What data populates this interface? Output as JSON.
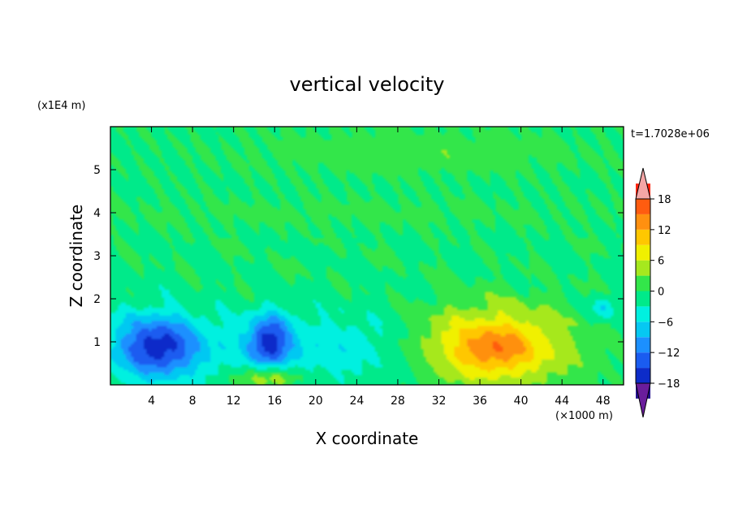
{
  "chart_data": {
    "type": "heatmap",
    "title": "vertical velocity",
    "xlabel": "X coordinate",
    "ylabel": "Z coordinate",
    "x_unit": "(×1000 m)",
    "y_unit": "(x1E4 m)",
    "time_label": "t=1.7028e+06",
    "xlim": [
      0,
      50
    ],
    "ylim": [
      0,
      6
    ],
    "x_ticks": [
      4,
      8,
      12,
      16,
      20,
      24,
      28,
      32,
      36,
      40,
      44,
      48
    ],
    "y_ticks": [
      1,
      2,
      3,
      4,
      5
    ],
    "colorbar": {
      "labels": [
        "18",
        "12",
        "6",
        "0",
        "−6",
        "−12",
        "−18"
      ],
      "label_values": [
        18,
        12,
        6,
        0,
        -6,
        -12,
        -18
      ],
      "range": [
        -21,
        21
      ],
      "levels": [
        -21,
        -18,
        -15,
        -12,
        -9,
        -6,
        -3,
        0,
        3,
        6,
        9,
        12,
        15,
        18,
        21
      ],
      "colors": [
        "#6a1d9c",
        "#22108c",
        "#0d2cc9",
        "#1a5cf0",
        "#1c90ff",
        "#06c8f2",
        "#00f0e0",
        "#00ea8a",
        "#33e64a",
        "#a6e81e",
        "#f0f000",
        "#ffc700",
        "#ff9010",
        "#ff5c10",
        "#ff2410",
        "#f4a6a6"
      ],
      "extend": "both"
    },
    "features": [
      {
        "kind": "updraft",
        "x": 37,
        "z": 0.95,
        "peak": 12
      },
      {
        "kind": "downdraft",
        "x": 4.5,
        "z": 1.0,
        "peak": -14
      },
      {
        "kind": "downdraft",
        "x": 15.5,
        "z": 0.95,
        "peak": -13
      },
      {
        "kind": "weak updraft",
        "x": 15.5,
        "z": 0.2,
        "peak": 5
      }
    ]
  }
}
